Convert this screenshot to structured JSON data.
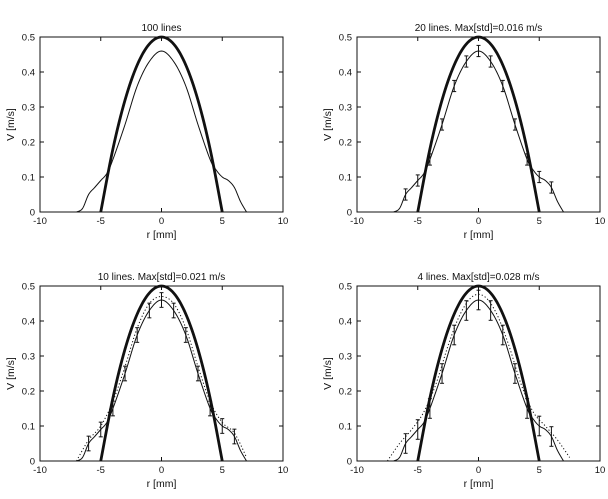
{
  "figure": {
    "background": "#ffffff",
    "ink": "#111111"
  },
  "chart_data": [
    {
      "type": "line",
      "title": "100 lines",
      "xlabel": "r [mm]",
      "ylabel": "V [m/s]",
      "xlim": [
        -10,
        10
      ],
      "ylim": [
        0,
        0.5
      ],
      "xticks": [
        -10,
        -5,
        0,
        5,
        10
      ],
      "yticks": [
        0,
        0.1,
        0.2,
        0.3,
        0.4,
        0.5
      ],
      "grid": false,
      "legend": "none",
      "series": [
        {
          "style": "thick",
          "x": [
            -5,
            -4,
            -3,
            -2,
            -1,
            0,
            1,
            2,
            3,
            4,
            5
          ],
          "y": [
            0,
            0.18,
            0.32,
            0.42,
            0.48,
            0.5,
            0.48,
            0.42,
            0.32,
            0.18,
            0
          ]
        },
        {
          "style": "thin",
          "x": [
            -7,
            -6.5,
            -6,
            -5.5,
            -5,
            -4.5,
            -4,
            -3,
            -2,
            -1,
            0,
            1,
            2,
            3,
            4,
            4.5,
            5,
            5.5,
            6,
            6.5,
            7
          ],
          "y": [
            0,
            0.01,
            0.05,
            0.07,
            0.09,
            0.11,
            0.15,
            0.25,
            0.36,
            0.43,
            0.46,
            0.43,
            0.36,
            0.25,
            0.15,
            0.12,
            0.1,
            0.09,
            0.07,
            0.03,
            0
          ]
        }
      ]
    },
    {
      "type": "line",
      "title": "20 lines.  Max[std]=0.016 m/s",
      "xlabel": "r [mm]",
      "ylabel": "V [m/s]",
      "xlim": [
        -10,
        10
      ],
      "ylim": [
        0,
        0.5
      ],
      "xticks": [
        -10,
        -5,
        0,
        5,
        10
      ],
      "yticks": [
        0,
        0.1,
        0.2,
        0.3,
        0.4,
        0.5
      ],
      "grid": false,
      "legend": "none",
      "series": [
        {
          "style": "thick",
          "x": [
            -5,
            -4,
            -3,
            -2,
            -1,
            0,
            1,
            2,
            3,
            4,
            5
          ],
          "y": [
            0,
            0.18,
            0.32,
            0.42,
            0.48,
            0.5,
            0.48,
            0.42,
            0.32,
            0.18,
            0
          ]
        },
        {
          "style": "thin",
          "x": [
            -7,
            -6.5,
            -6,
            -5.5,
            -5,
            -4.5,
            -4,
            -3,
            -2,
            -1,
            0,
            1,
            2,
            3,
            4,
            4.5,
            5,
            5.5,
            6,
            6.5,
            7
          ],
          "y": [
            0,
            0.01,
            0.05,
            0.07,
            0.09,
            0.11,
            0.15,
            0.25,
            0.36,
            0.43,
            0.46,
            0.43,
            0.36,
            0.25,
            0.15,
            0.12,
            0.1,
            0.09,
            0.07,
            0.03,
            0
          ]
        },
        {
          "style": "errorbars",
          "x": [
            -6,
            -5,
            -4,
            -3,
            -2,
            -1,
            0,
            1,
            2,
            3,
            4,
            5,
            6
          ],
          "y": [
            0.05,
            0.09,
            0.15,
            0.25,
            0.36,
            0.43,
            0.46,
            0.43,
            0.36,
            0.25,
            0.15,
            0.1,
            0.07
          ],
          "err": 0.016
        }
      ]
    },
    {
      "type": "line",
      "title": "10 lines.  Max[std]=0.021 m/s",
      "xlabel": "r [mm]",
      "ylabel": "V [m/s]",
      "xlim": [
        -10,
        10
      ],
      "ylim": [
        0,
        0.5
      ],
      "xticks": [
        -10,
        -5,
        0,
        5,
        10
      ],
      "yticks": [
        0,
        0.1,
        0.2,
        0.3,
        0.4,
        0.5
      ],
      "grid": false,
      "legend": "none",
      "series": [
        {
          "style": "thick",
          "x": [
            -5,
            -4,
            -3,
            -2,
            -1,
            0,
            1,
            2,
            3,
            4,
            5
          ],
          "y": [
            0,
            0.18,
            0.32,
            0.42,
            0.48,
            0.5,
            0.48,
            0.42,
            0.32,
            0.18,
            0
          ]
        },
        {
          "style": "thin",
          "x": [
            -7,
            -6.5,
            -6,
            -5.5,
            -5,
            -4.5,
            -4,
            -3,
            -2,
            -1,
            0,
            1,
            2,
            3,
            4,
            4.5,
            5,
            5.5,
            6,
            6.5,
            7
          ],
          "y": [
            0,
            0.01,
            0.05,
            0.07,
            0.09,
            0.11,
            0.15,
            0.25,
            0.36,
            0.43,
            0.46,
            0.43,
            0.36,
            0.25,
            0.15,
            0.12,
            0.1,
            0.09,
            0.07,
            0.03,
            0
          ]
        },
        {
          "style": "dotted",
          "x": [
            -7,
            -6,
            -5,
            -4,
            -3,
            -2,
            -1,
            0,
            1,
            2,
            3,
            4,
            5,
            6,
            7
          ],
          "y": [
            0,
            0.06,
            0.1,
            0.17,
            0.27,
            0.38,
            0.45,
            0.47,
            0.45,
            0.38,
            0.27,
            0.17,
            0.11,
            0.08,
            0.01
          ]
        },
        {
          "style": "errorbars",
          "x": [
            -6,
            -5,
            -4,
            -3,
            -2,
            -1,
            0,
            1,
            2,
            3,
            4,
            5,
            6
          ],
          "y": [
            0.05,
            0.09,
            0.15,
            0.25,
            0.36,
            0.43,
            0.46,
            0.43,
            0.36,
            0.25,
            0.15,
            0.1,
            0.07
          ],
          "err": 0.021
        }
      ]
    },
    {
      "type": "line",
      "title": "4 lines.  Max[std]=0.028 m/s",
      "xlabel": "r [mm]",
      "ylabel": "V [m/s]",
      "xlim": [
        -10,
        10
      ],
      "ylim": [
        0,
        0.5
      ],
      "xticks": [
        -10,
        -5,
        0,
        5,
        10
      ],
      "yticks": [
        0,
        0.1,
        0.2,
        0.3,
        0.4,
        0.5
      ],
      "grid": false,
      "legend": "none",
      "series": [
        {
          "style": "thick",
          "x": [
            -5,
            -4,
            -3,
            -2,
            -1,
            0,
            1,
            2,
            3,
            4,
            5
          ],
          "y": [
            0,
            0.18,
            0.32,
            0.42,
            0.48,
            0.5,
            0.48,
            0.42,
            0.32,
            0.18,
            0
          ]
        },
        {
          "style": "thin",
          "x": [
            -7,
            -6.5,
            -6,
            -5.5,
            -5,
            -4.5,
            -4,
            -3,
            -2,
            -1,
            0,
            1,
            2,
            3,
            4,
            4.5,
            5,
            5.5,
            6,
            6.5,
            7
          ],
          "y": [
            0,
            0.01,
            0.05,
            0.07,
            0.09,
            0.11,
            0.15,
            0.25,
            0.36,
            0.43,
            0.46,
            0.43,
            0.36,
            0.25,
            0.15,
            0.12,
            0.1,
            0.09,
            0.07,
            0.03,
            0
          ]
        },
        {
          "style": "dotted",
          "x": [
            -7.5,
            -6.5,
            -5.5,
            -4.5,
            -3.5,
            -2.5,
            -1.5,
            -0.5,
            0.5,
            1.5,
            2.5,
            3.5,
            4.5,
            5.5,
            6.5,
            7.5
          ],
          "y": [
            0,
            0.05,
            0.09,
            0.14,
            0.22,
            0.33,
            0.42,
            0.47,
            0.47,
            0.42,
            0.33,
            0.22,
            0.14,
            0.1,
            0.06,
            0.01
          ]
        },
        {
          "style": "errorbars",
          "x": [
            -6,
            -5,
            -4,
            -3,
            -2,
            -1,
            0,
            1,
            2,
            3,
            4,
            5,
            6
          ],
          "y": [
            0.05,
            0.09,
            0.15,
            0.25,
            0.36,
            0.43,
            0.46,
            0.43,
            0.36,
            0.25,
            0.15,
            0.1,
            0.07
          ],
          "err": 0.028
        }
      ]
    }
  ]
}
